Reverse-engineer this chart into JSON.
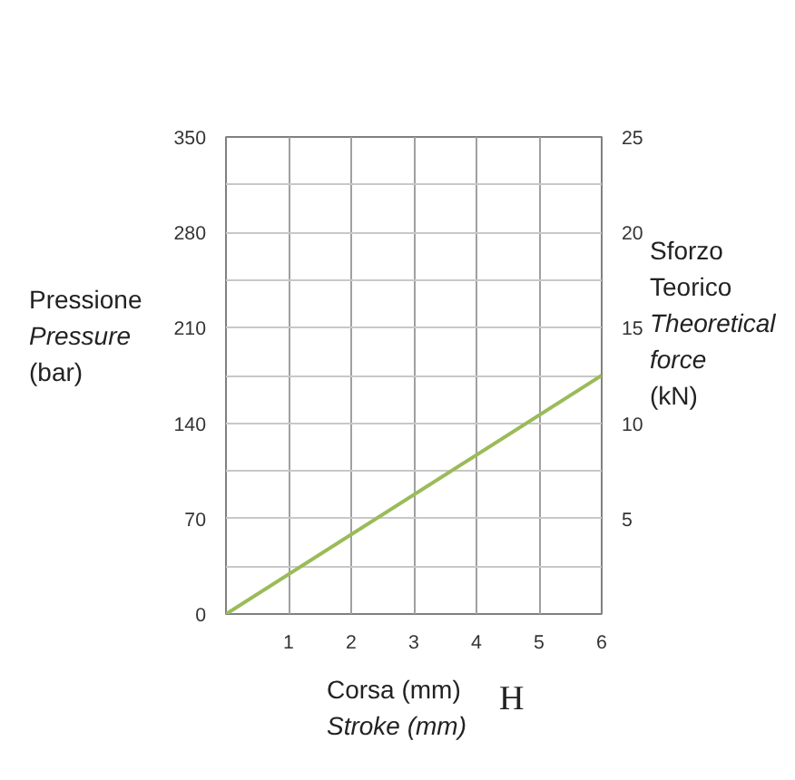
{
  "chart_data": {
    "type": "line",
    "xlabel": "Corsa  (mm)\nStroke (mm)",
    "ylabel": "Pressione\nPressure\n(bar)",
    "y2label": "Sforzo\nTeorico\nTheoretical\nforce\n(kN)",
    "x": [
      0,
      6
    ],
    "series": [
      {
        "color": "#9bbb59",
        "values": [
          0,
          175
        ]
      }
    ],
    "xlim": [
      0,
      6
    ],
    "xticks": [
      1,
      2,
      3,
      4,
      5,
      6
    ],
    "ylim": [
      0,
      350
    ],
    "yticks": [
      0,
      {
        "value": 35,
        "label": null
      },
      70,
      {
        "value": 105,
        "label": null
      },
      140,
      {
        "value": 175,
        "label": null
      },
      210,
      {
        "value": 245,
        "label": null
      },
      280,
      {
        "value": 315,
        "label": null
      },
      350
    ],
    "y2lim": [
      0,
      25
    ],
    "y2ticks": [
      5,
      10,
      15,
      20,
      25
    ],
    "grid": true,
    "marker": "none",
    "line_style": "solid",
    "annotations": [
      "H"
    ]
  }
}
